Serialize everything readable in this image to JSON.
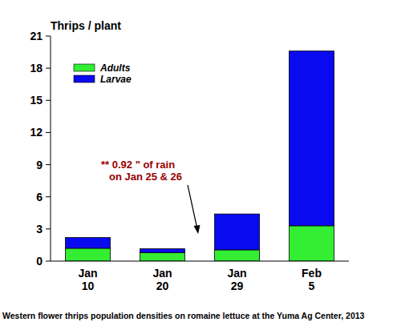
{
  "chart_data": {
    "type": "bar",
    "stacked": true,
    "title": "Western flower thrips population densities on romaine lettuce at the Yuma Ag Center, 2013",
    "y_label": "Thrips / plant",
    "categories": [
      "Jan 10",
      "Jan 20",
      "Jan 29",
      "Feb 5"
    ],
    "series": [
      {
        "name": "Adults",
        "color": "#33ee33",
        "values": [
          1.2,
          0.8,
          1.05,
          3.3
        ]
      },
      {
        "name": "Larvae",
        "color": "#0a0af0",
        "values": [
          1.0,
          0.35,
          3.35,
          16.3
        ]
      }
    ],
    "ylim": [
      0,
      21
    ],
    "yticks": [
      0,
      3,
      6,
      9,
      12,
      15,
      18,
      21
    ],
    "legend": "upper left",
    "annotation": [
      "** 0.92 \"  of rain",
      "on Jan 25 & 26"
    ]
  }
}
